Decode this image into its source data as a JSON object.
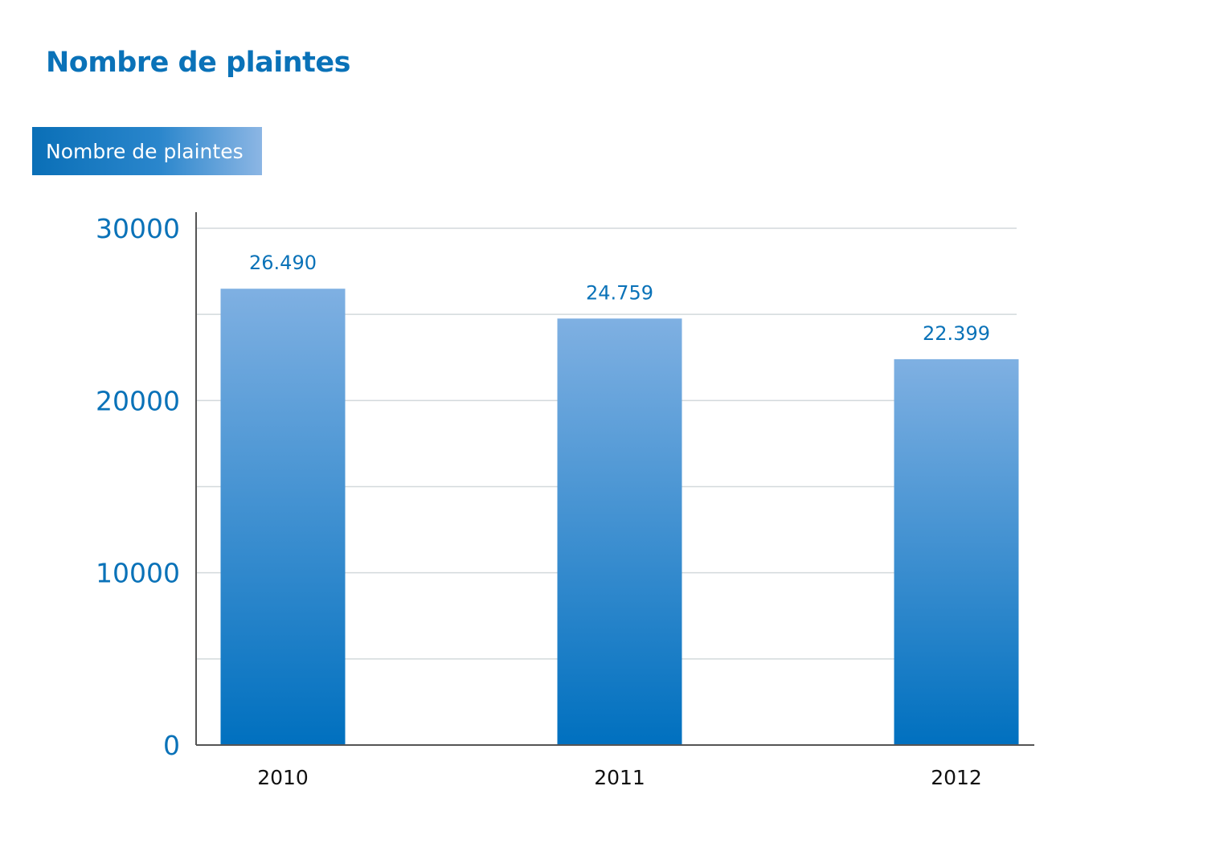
{
  "title": "Nombre de plaintes",
  "legend": {
    "label": "Nombre de plaintes"
  },
  "colors": {
    "title": "#0a72b8",
    "bar_top": "#7fb0e2",
    "bar_bottom": "#0070bf",
    "gridline": "#d3d9dc",
    "axis": "#555555"
  },
  "chart_data": {
    "type": "bar",
    "categories": [
      "2010",
      "2011",
      "2012"
    ],
    "series": [
      {
        "name": "Nombre de plaintes",
        "values": [
          26490,
          24759,
          22399
        ],
        "labels": [
          "26.490",
          "24.759",
          "22.399"
        ]
      }
    ],
    "ylim": [
      0,
      30000
    ],
    "yticks": [
      0,
      10000,
      20000,
      30000
    ],
    "ytick_labels": [
      "0",
      "10000",
      "20000",
      "30000"
    ],
    "minor_gridlines": [
      5000,
      15000,
      25000
    ],
    "grid": true,
    "legend_position": "top-left",
    "title": "Nombre de plaintes",
    "xlabel": "",
    "ylabel": ""
  }
}
